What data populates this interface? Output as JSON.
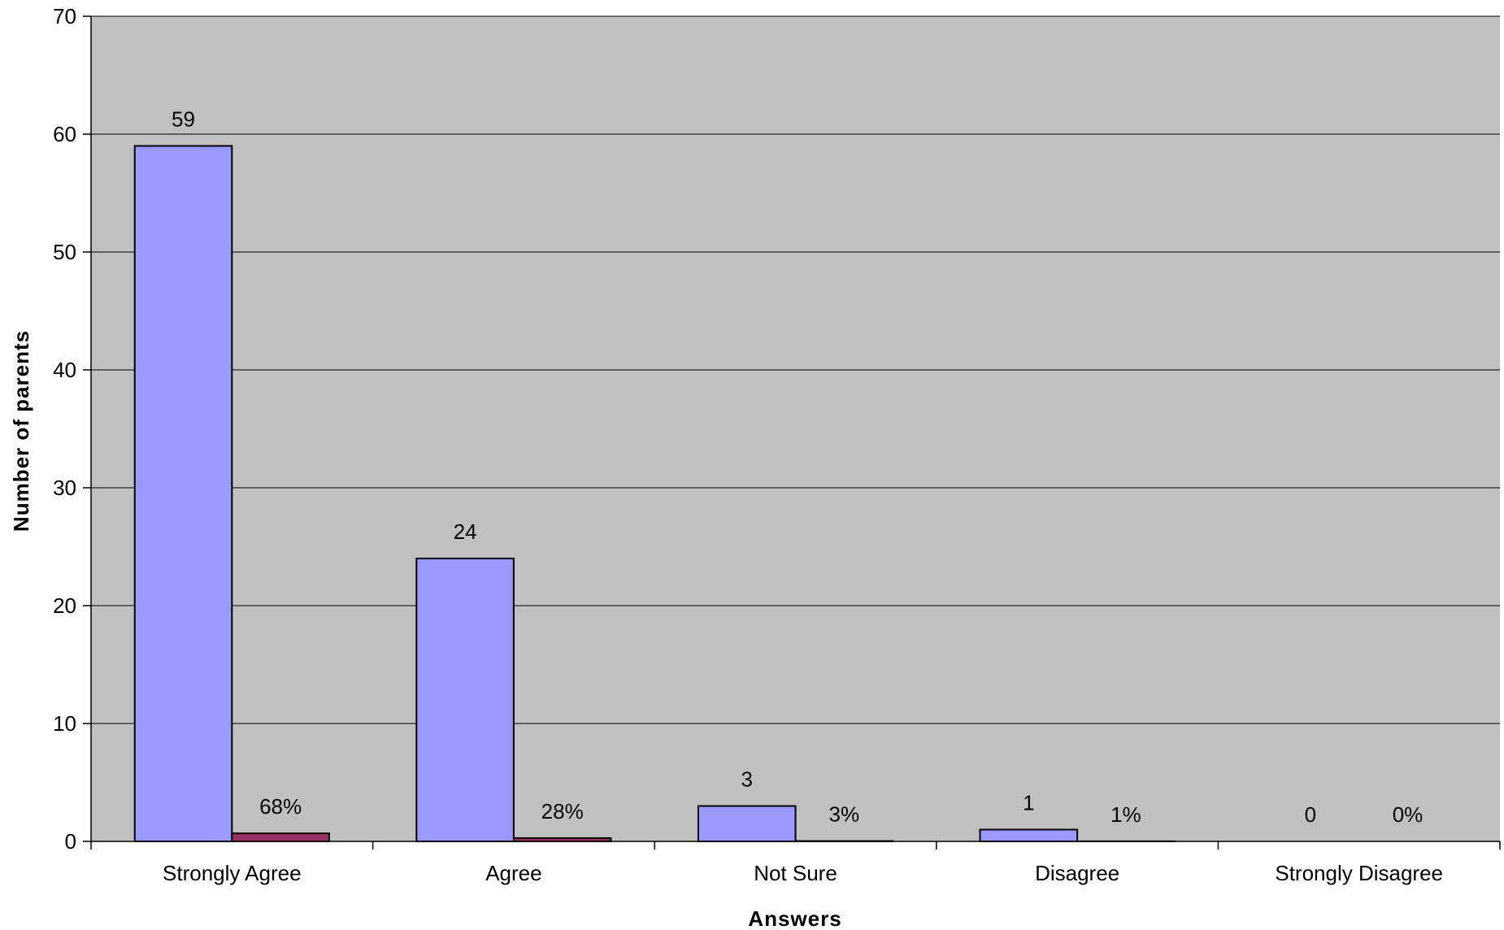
{
  "chart_data": {
    "type": "bar",
    "categories": [
      "Strongly Agree",
      "Agree",
      "Not Sure",
      "Disagree",
      "Strongly Disagree"
    ],
    "series": [
      {
        "values": [
          59,
          24,
          3,
          1,
          0
        ],
        "labels": [
          "59",
          "24",
          "3",
          "1",
          "0"
        ],
        "color": "#9999ff"
      },
      {
        "values": [
          0.68,
          0.28,
          0.03,
          0.01,
          0
        ],
        "labels": [
          "68%",
          "28%",
          "3%",
          "1%",
          "0%"
        ],
        "color": "#993366"
      }
    ],
    "xlabel": "Answers",
    "ylabel": "Number of parents",
    "ylim": [
      0,
      70
    ],
    "yticks": [
      0,
      10,
      20,
      30,
      40,
      50,
      60,
      70
    ],
    "grid": true,
    "plot_background": "#c0c0c0"
  }
}
